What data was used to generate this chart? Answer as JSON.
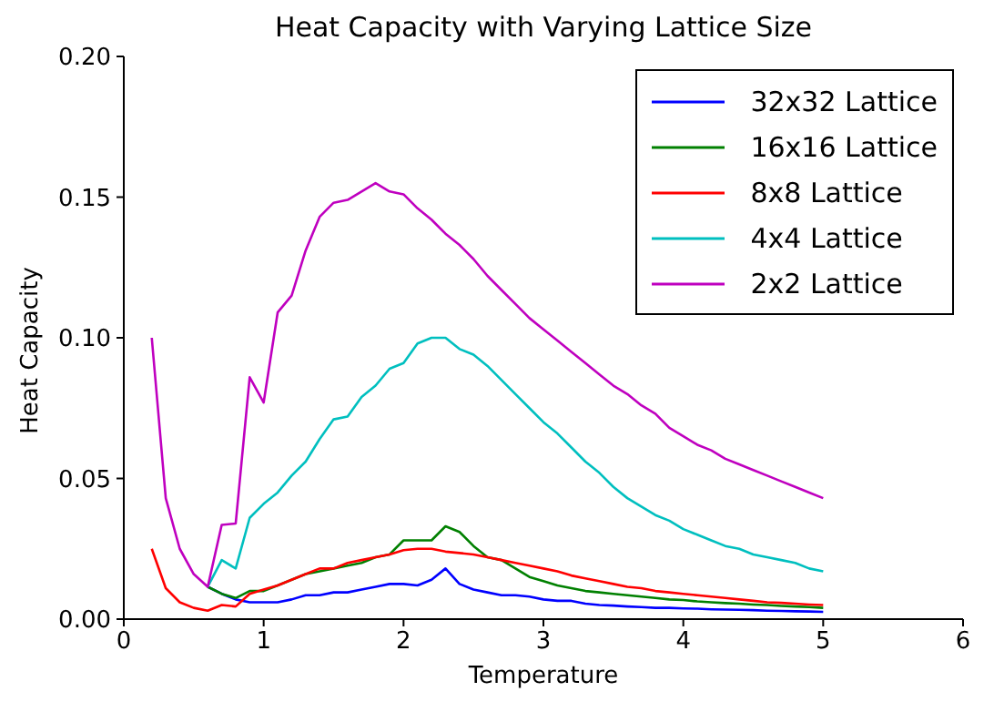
{
  "chart_data": {
    "type": "line",
    "title": "Heat Capacity with Varying Lattice Size",
    "xlabel": "Temperature",
    "ylabel": "Heat Capacity",
    "x": [
      0.2,
      0.3,
      0.4,
      0.5,
      0.6,
      0.7,
      0.8,
      0.9,
      1.0,
      1.1,
      1.2,
      1.3,
      1.4,
      1.5,
      1.6,
      1.7,
      1.8,
      1.9,
      2.0,
      2.1,
      2.2,
      2.3,
      2.4,
      2.5,
      2.6,
      2.7,
      2.8,
      2.9,
      3.0,
      3.1,
      3.2,
      3.3,
      3.4,
      3.5,
      3.6,
      3.7,
      3.8,
      3.9,
      4.0,
      4.1,
      4.2,
      4.3,
      4.4,
      4.5,
      4.6,
      4.7,
      4.8,
      4.9,
      5.0
    ],
    "series": [
      {
        "name": "32x32 Lattice",
        "color": "#0000ff",
        "values": [
          null,
          null,
          null,
          null,
          0.0115,
          0.009,
          0.007,
          0.006,
          0.006,
          0.006,
          0.007,
          0.0085,
          0.0085,
          0.0095,
          0.0095,
          0.0105,
          0.0115,
          0.0125,
          0.0125,
          0.012,
          0.014,
          0.018,
          0.0125,
          0.0105,
          0.0095,
          0.0085,
          0.0085,
          0.008,
          0.007,
          0.0065,
          0.0065,
          0.0055,
          0.005,
          0.0048,
          0.0045,
          0.0043,
          0.004,
          0.004,
          0.0038,
          0.0037,
          0.0035,
          0.0034,
          0.0033,
          0.0032,
          0.003,
          0.0029,
          0.0028,
          0.0027,
          0.0026
        ]
      },
      {
        "name": "16x16 Lattice",
        "color": "#008000",
        "values": [
          null,
          null,
          null,
          null,
          0.0115,
          0.009,
          0.0075,
          0.01,
          0.01,
          0.012,
          0.014,
          0.016,
          0.017,
          0.018,
          0.019,
          0.02,
          0.022,
          0.023,
          0.028,
          0.028,
          0.028,
          0.033,
          0.031,
          0.026,
          0.022,
          0.021,
          0.018,
          0.015,
          0.0135,
          0.012,
          0.011,
          0.01,
          0.0095,
          0.009,
          0.0085,
          0.008,
          0.0075,
          0.007,
          0.0068,
          0.0063,
          0.006,
          0.0057,
          0.0055,
          0.0052,
          0.005,
          0.0047,
          0.0045,
          0.0043,
          0.004
        ]
      },
      {
        "name": "8x8 Lattice",
        "color": "#ff0000",
        "values": [
          0.025,
          0.011,
          0.006,
          0.004,
          0.003,
          0.005,
          0.0045,
          0.009,
          0.0105,
          0.012,
          0.014,
          0.016,
          0.018,
          0.018,
          0.02,
          0.021,
          0.022,
          0.023,
          0.0245,
          0.025,
          0.025,
          0.024,
          0.0235,
          0.023,
          0.022,
          0.021,
          0.02,
          0.019,
          0.018,
          0.017,
          0.0155,
          0.0145,
          0.0135,
          0.0125,
          0.0115,
          0.011,
          0.01,
          0.0095,
          0.009,
          0.0085,
          0.008,
          0.0075,
          0.007,
          0.0065,
          0.006,
          0.0058,
          0.0055,
          0.0052,
          0.005
        ]
      },
      {
        "name": "4x4 Lattice",
        "color": "#00bfbf",
        "values": [
          null,
          null,
          null,
          null,
          0.0115,
          0.021,
          0.018,
          0.036,
          0.041,
          0.045,
          0.051,
          0.056,
          0.064,
          0.071,
          0.072,
          0.079,
          0.083,
          0.089,
          0.091,
          0.098,
          0.1,
          0.1,
          0.096,
          0.094,
          0.09,
          0.085,
          0.08,
          0.075,
          0.07,
          0.066,
          0.061,
          0.056,
          0.052,
          0.047,
          0.043,
          0.04,
          0.037,
          0.035,
          0.032,
          0.03,
          0.028,
          0.026,
          0.025,
          0.023,
          0.022,
          0.021,
          0.02,
          0.018,
          0.017
        ]
      },
      {
        "name": "2x2 Lattice",
        "color": "#bf00bf",
        "values": [
          0.1,
          0.043,
          0.025,
          0.016,
          0.0115,
          0.0335,
          0.034,
          0.086,
          0.077,
          0.109,
          0.115,
          0.131,
          0.143,
          0.148,
          0.149,
          0.152,
          0.155,
          0.152,
          0.151,
          0.146,
          0.142,
          0.137,
          0.133,
          0.128,
          0.122,
          0.117,
          0.112,
          0.107,
          0.103,
          0.099,
          0.095,
          0.091,
          0.087,
          0.083,
          0.08,
          0.076,
          0.073,
          0.068,
          0.065,
          0.062,
          0.06,
          0.057,
          0.055,
          0.053,
          0.051,
          0.049,
          0.047,
          0.045,
          0.043
        ]
      }
    ],
    "xlim": [
      0,
      6
    ],
    "xticks": [
      0,
      1,
      2,
      3,
      4,
      5,
      6
    ],
    "ylim": [
      0,
      0.2
    ],
    "yticks": [
      {
        "value": 0,
        "label": "0.00"
      },
      {
        "value": 0.05,
        "label": "0.05"
      },
      {
        "value": 0.1,
        "label": "0.10"
      },
      {
        "value": 0.15,
        "label": "0.15"
      },
      {
        "value": 0.2,
        "label": "0.20"
      }
    ],
    "grid": false,
    "legend": "top right",
    "marker": "none",
    "line_style": "solid"
  }
}
